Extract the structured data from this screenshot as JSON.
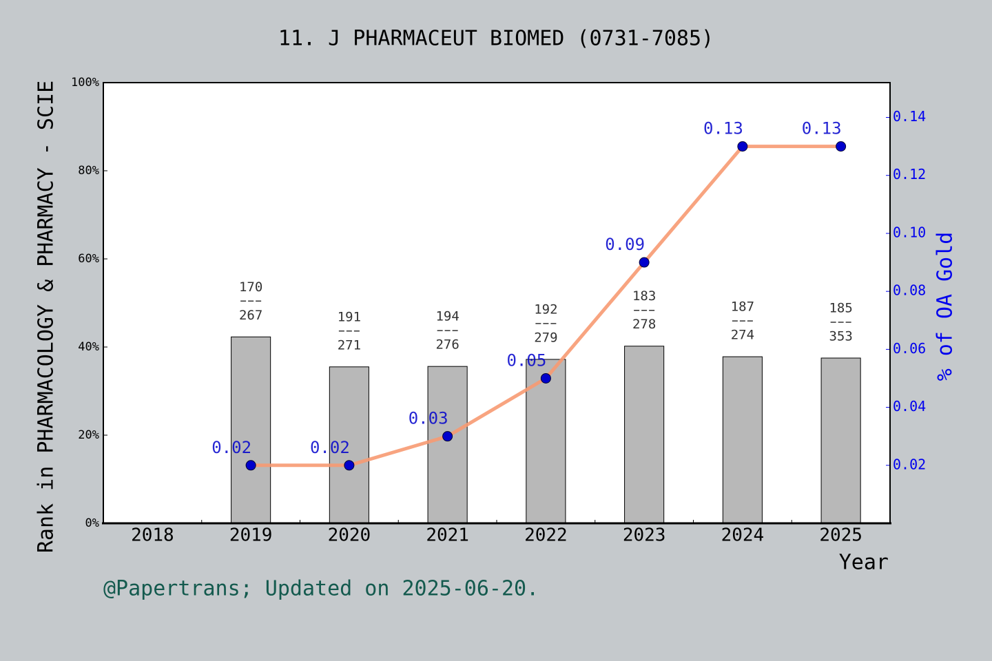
{
  "chart_data": {
    "type": "bar",
    "title": "11. J PHARMACEUT BIOMED (0731-7085)",
    "x_label": "Year",
    "y_label": "Rank in PHARMACOLOGY & PHARMACY - SCIE",
    "y2_label": "% of OA Gold",
    "note": "@Papertrans; Updated on 2025-06-20.",
    "categories": [
      "2018",
      "2019",
      "2020",
      "2021",
      "2022",
      "2023",
      "2024",
      "2025"
    ],
    "series": [
      {
        "type": "bar",
        "color": "#b8b8b8",
        "values": [
          null,
          42.3,
          35.5,
          35.6,
          37.2,
          40.2,
          37.8,
          37.5
        ],
        "ranks": [
          null,
          "170",
          "191",
          "194",
          "192",
          "183",
          "187",
          "185"
        ],
        "totals": [
          null,
          "267",
          "271",
          "276",
          "279",
          "278",
          "274",
          "353"
        ]
      },
      {
        "type": "line",
        "axis": "y2",
        "color": "#f79a72",
        "marker_color": "#0000cc",
        "values": [
          null,
          0.02,
          0.02,
          0.03,
          0.05,
          0.09,
          0.13,
          0.13
        ]
      }
    ],
    "ylim": [
      0,
      100
    ],
    "yticks": [
      {
        "value": 0,
        "label": "0%"
      },
      {
        "value": 20,
        "label": "20%"
      },
      {
        "value": 40,
        "label": "40%"
      },
      {
        "value": 60,
        "label": "60%"
      },
      {
        "value": 80,
        "label": "80%"
      },
      {
        "value": 100,
        "label": "100%"
      }
    ],
    "y2lim": [
      0,
      0.152
    ],
    "y2ticks": [
      0.02,
      0.04,
      0.06,
      0.08,
      {
        "value": 0.1,
        "label": "0.10"
      },
      0.12,
      0.14
    ]
  }
}
